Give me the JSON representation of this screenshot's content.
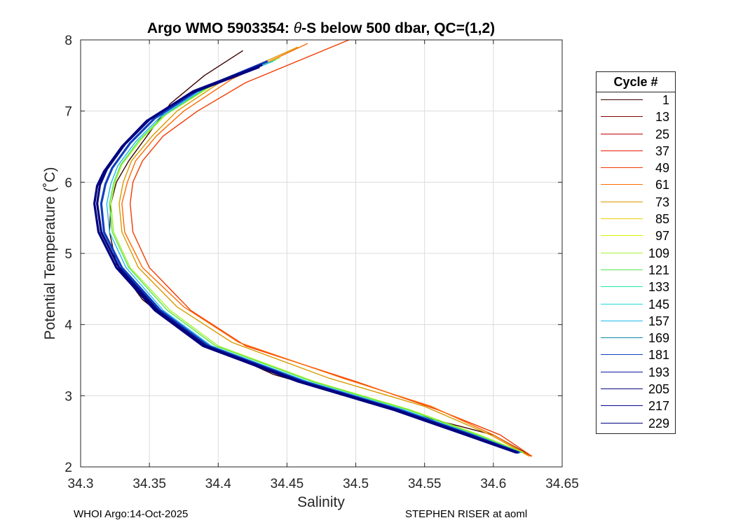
{
  "chart_data": {
    "type": "line",
    "title_prefix": "Argo WMO 5903354: ",
    "title_theta": "θ",
    "title_suffix": "-S below 500 dbar,  QC=(1,2)",
    "xlabel": "Salinity",
    "ylabel": "Potential Temperature (˚C)",
    "xlim": [
      34.3,
      34.65
    ],
    "ylim": [
      2,
      8
    ],
    "xticks": [
      34.3,
      34.35,
      34.4,
      34.45,
      34.5,
      34.55,
      34.6,
      34.65
    ],
    "xtick_labels": [
      "34.3",
      "34.35",
      "34.4",
      "34.45",
      "34.5",
      "34.55",
      "34.6",
      "34.65"
    ],
    "yticks": [
      2,
      3,
      4,
      5,
      6,
      7,
      8
    ],
    "ytick_labels": [
      "2",
      "3",
      "4",
      "5",
      "6",
      "7",
      "8"
    ],
    "grid": true,
    "legend_title": "Cycle #",
    "legend_position": "right",
    "legend": [
      {
        "label": "1",
        "color": "#3a0000"
      },
      {
        "label": "13",
        "color": "#800000"
      },
      {
        "label": "25",
        "color": "#c00000"
      },
      {
        "label": "37",
        "color": "#e81800"
      },
      {
        "label": "49",
        "color": "#f03a00"
      },
      {
        "label": "61",
        "color": "#ff6a00"
      },
      {
        "label": "73",
        "color": "#d89a00"
      },
      {
        "label": "85",
        "color": "#e6d000"
      },
      {
        "label": "97",
        "color": "#d8f000"
      },
      {
        "label": "109",
        "color": "#a8f030"
      },
      {
        "label": "121",
        "color": "#50e850"
      },
      {
        "label": "133",
        "color": "#20e8a0"
      },
      {
        "label": "145",
        "color": "#20d8d8"
      },
      {
        "label": "157",
        "color": "#20b8f0"
      },
      {
        "label": "169",
        "color": "#0a8aa0"
      },
      {
        "label": "181",
        "color": "#1040c0"
      },
      {
        "label": "193",
        "color": "#0818a0"
      },
      {
        "label": "205",
        "color": "#080880"
      },
      {
        "label": "217",
        "color": "#0a0a90"
      },
      {
        "label": "229",
        "color": "#000080"
      }
    ],
    "series": [
      {
        "name": "1",
        "color": "#3a0000",
        "x": [
          34.418,
          34.39,
          34.365,
          34.352,
          34.335,
          34.326,
          34.322,
          34.321,
          34.326,
          34.345,
          34.378,
          34.44,
          34.53,
          34.6,
          34.628
        ],
        "y": [
          7.85,
          7.5,
          7.1,
          6.75,
          6.3,
          6.0,
          5.7,
          5.3,
          4.85,
          4.35,
          3.85,
          3.3,
          2.8,
          2.45,
          2.15
        ]
      },
      {
        "name": "49",
        "color": "#f03a00",
        "x": [
          34.495,
          34.42,
          34.385,
          34.36,
          34.345,
          34.338,
          34.336,
          34.338,
          34.35,
          34.38,
          34.42,
          34.5,
          34.56,
          34.605,
          34.628
        ],
        "y": [
          8.0,
          7.4,
          7.0,
          6.65,
          6.3,
          6.0,
          5.7,
          5.3,
          4.8,
          4.2,
          3.7,
          3.2,
          2.8,
          2.45,
          2.15
        ]
      },
      {
        "name": "61",
        "color": "#ff6a00",
        "x": [
          34.465,
          34.41,
          34.375,
          34.355,
          34.34,
          34.334,
          34.33,
          34.332,
          34.345,
          34.375,
          34.415,
          34.49,
          34.555,
          34.6,
          34.627
        ],
        "y": [
          7.95,
          7.45,
          7.0,
          6.65,
          6.3,
          6.0,
          5.7,
          5.3,
          4.8,
          4.25,
          3.75,
          3.25,
          2.85,
          2.45,
          2.15
        ]
      },
      {
        "name": "73",
        "color": "#d89a00",
        "x": [
          34.458,
          34.405,
          34.37,
          34.352,
          34.337,
          34.331,
          34.328,
          34.33,
          34.342,
          34.37,
          34.41,
          34.48,
          34.55,
          34.598,
          34.626
        ],
        "y": [
          7.9,
          7.45,
          7.0,
          6.65,
          6.3,
          6.0,
          5.7,
          5.3,
          4.8,
          4.25,
          3.75,
          3.25,
          2.85,
          2.45,
          2.15
        ]
      },
      {
        "name": "109",
        "color": "#a8f030",
        "x": [
          34.445,
          34.395,
          34.362,
          34.344,
          34.33,
          34.325,
          34.322,
          34.324,
          34.336,
          34.365,
          34.4,
          34.47,
          34.54,
          34.59,
          34.622
        ],
        "y": [
          7.75,
          7.35,
          6.95,
          6.6,
          6.25,
          6.0,
          5.7,
          5.3,
          4.8,
          4.2,
          3.7,
          3.2,
          2.8,
          2.45,
          2.2
        ]
      },
      {
        "name": "121",
        "color": "#50e850",
        "x": [
          34.442,
          34.392,
          34.36,
          34.342,
          34.329,
          34.324,
          34.321,
          34.323,
          34.335,
          34.363,
          34.398,
          34.468,
          34.538,
          34.588,
          34.621
        ],
        "y": [
          7.72,
          7.33,
          6.93,
          6.58,
          6.24,
          5.99,
          5.7,
          5.3,
          4.8,
          4.2,
          3.7,
          3.2,
          2.8,
          2.45,
          2.2
        ]
      },
      {
        "name": "157",
        "color": "#20b8f0",
        "x": [
          34.44,
          34.39,
          34.358,
          34.34,
          34.327,
          34.322,
          34.319,
          34.321,
          34.333,
          34.36,
          34.395,
          34.465,
          34.535,
          34.586,
          34.62
        ],
        "y": [
          7.7,
          7.32,
          6.92,
          6.57,
          6.23,
          5.98,
          5.7,
          5.3,
          4.8,
          4.2,
          3.7,
          3.2,
          2.8,
          2.45,
          2.2
        ]
      },
      {
        "name": "181",
        "color": "#1040c0",
        "x": [
          34.436,
          34.386,
          34.354,
          34.336,
          34.323,
          34.318,
          34.315,
          34.317,
          34.33,
          34.358,
          34.393,
          34.462,
          34.532,
          34.584,
          34.619
        ],
        "y": [
          7.7,
          7.3,
          6.9,
          6.55,
          6.2,
          5.97,
          5.7,
          5.3,
          4.8,
          4.2,
          3.7,
          3.2,
          2.8,
          2.45,
          2.2
        ]
      },
      {
        "name": "205",
        "color": "#080880",
        "x": [
          34.432,
          34.382,
          34.35,
          34.332,
          34.319,
          34.314,
          34.312,
          34.315,
          34.328,
          34.356,
          34.391,
          34.46,
          34.53,
          34.582,
          34.618
        ],
        "y": [
          7.65,
          7.28,
          6.88,
          6.53,
          6.18,
          5.96,
          5.7,
          5.3,
          4.8,
          4.2,
          3.7,
          3.2,
          2.8,
          2.45,
          2.2
        ]
      },
      {
        "name": "229",
        "color": "#000080",
        "x": [
          34.43,
          34.38,
          34.348,
          34.33,
          34.317,
          34.312,
          34.31,
          34.313,
          34.326,
          34.354,
          34.389,
          34.458,
          34.528,
          34.58,
          34.617
        ],
        "y": [
          7.62,
          7.25,
          6.86,
          6.5,
          6.15,
          5.95,
          5.7,
          5.3,
          4.8,
          4.2,
          3.7,
          3.2,
          2.8,
          2.45,
          2.2
        ]
      }
    ]
  },
  "footer": {
    "left": "WHOI Argo:14-Oct-2025",
    "right": "STEPHEN RISER at aoml"
  }
}
